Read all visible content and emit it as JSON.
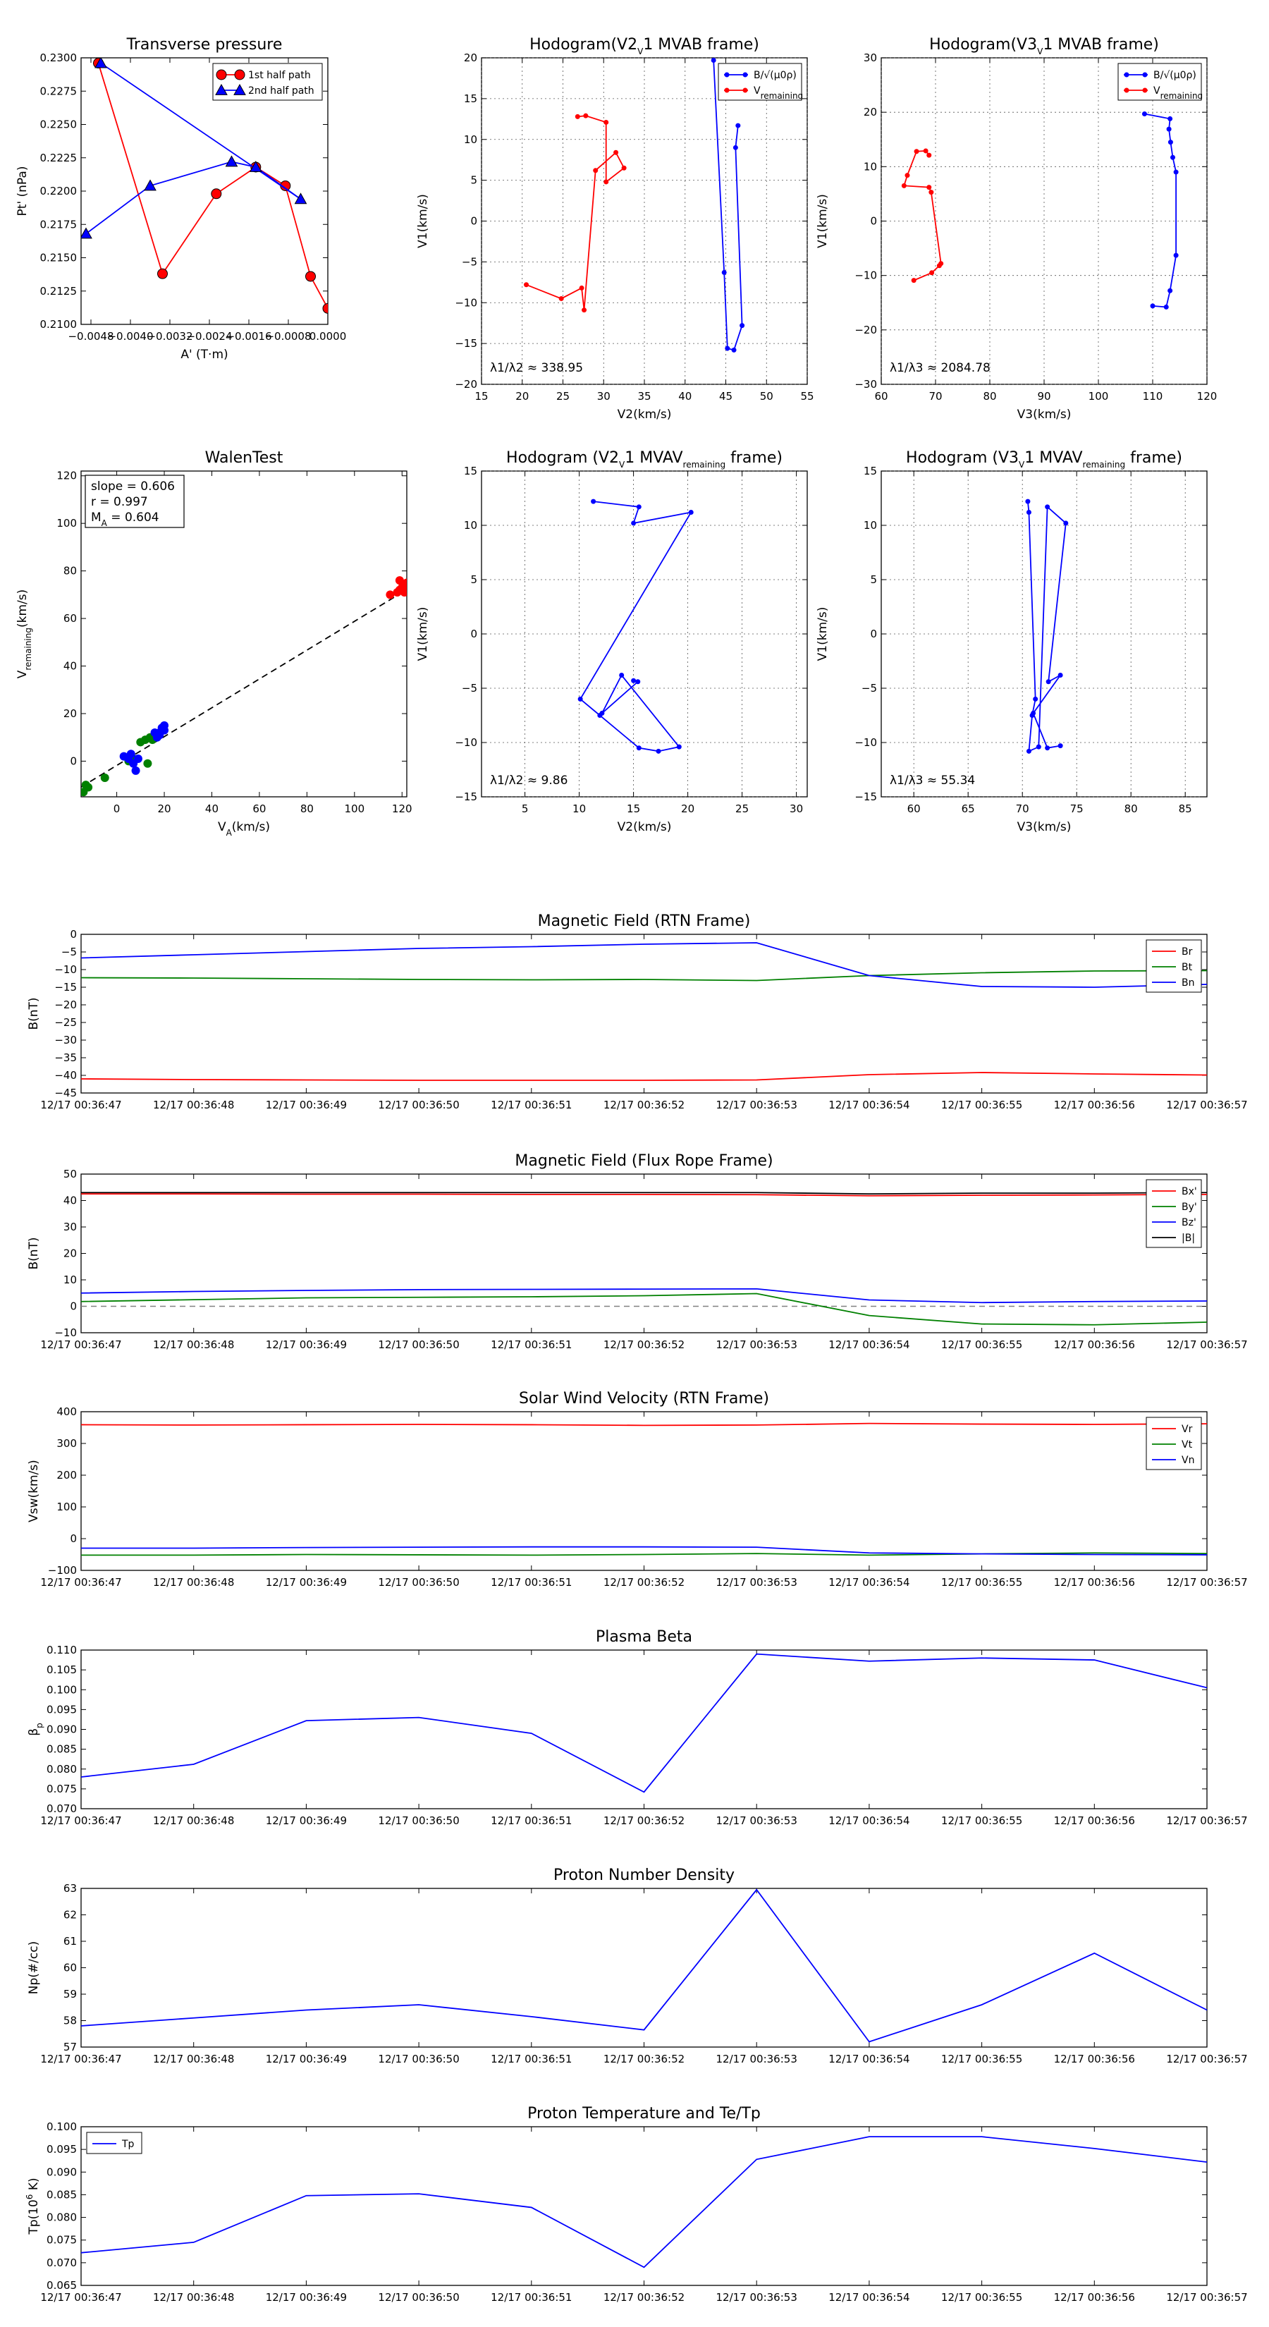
{
  "figure_title": "",
  "chart_data": [
    {
      "id": "transverse-pressure",
      "type": "line",
      "title": "Transverse pressure",
      "xlabel": "A' (T·m)",
      "ylabel": "Pt' (nPa)",
      "xlim": [
        -0.005,
        0.0
      ],
      "ylim": [
        0.21,
        0.23
      ],
      "xticks": [
        -0.0048,
        -0.004,
        -0.0032,
        -0.0024,
        -0.0016,
        -0.0008,
        0.0
      ],
      "xticklabels": [
        "−0.0048",
        "−0.0040",
        "−0.0032",
        "−0.0024",
        "−0.0016",
        "−0.0008",
        "0.0000"
      ],
      "yticks": [
        0.21,
        0.2125,
        0.215,
        0.2175,
        0.22,
        0.2225,
        0.225,
        0.2275,
        0.23
      ],
      "yticklabels": [
        "0.2100",
        "0.2125",
        "0.2150",
        "0.2175",
        "0.2200",
        "0.2225",
        "0.2250",
        "0.2275",
        "0.2300"
      ],
      "grid": false,
      "legend": "top-right",
      "series": [
        {
          "name": "1st half path",
          "color": "#ff0000",
          "marker": "circle",
          "x": [
            -0.00465,
            -0.00335,
            -0.00226,
            -0.00146,
            -0.00086,
            -0.00035,
            0.0
          ],
          "y": [
            0.2296,
            0.2138,
            0.2198,
            0.2218,
            0.2204,
            0.2136,
            0.2112
          ]
        },
        {
          "name": "2nd half path",
          "color": "#0000ff",
          "marker": "triangle",
          "x": [
            -0.0049,
            -0.0036,
            -0.00195,
            -0.00146,
            -0.00055,
            -0.0046
          ],
          "y": [
            0.2168,
            0.2204,
            0.2222,
            0.2218,
            0.2194,
            0.2296
          ]
        }
      ]
    },
    {
      "id": "hodogram-v2v1-mvab",
      "type": "line",
      "title": "Hodogram(V2_V1 MVAB frame)",
      "xlabel": "V2(km/s)",
      "ylabel": "V1(km/s)",
      "xlim": [
        15,
        55
      ],
      "ylim": [
        -20,
        20
      ],
      "xticks": [
        15,
        20,
        25,
        30,
        35,
        40,
        45,
        50,
        55
      ],
      "yticks": [
        -20,
        -15,
        -10,
        -5,
        0,
        5,
        10,
        15,
        20
      ],
      "grid": true,
      "legend": "top-right",
      "annotation": "λ1/λ2 ≈ 338.95",
      "series": [
        {
          "name": "B/√(μ0ρ)",
          "color": "#0000ff",
          "marker": "dot",
          "x": [
            43.5,
            44.8,
            45.2,
            46.0,
            47.0,
            46.2,
            46.5
          ],
          "y": [
            19.7,
            -6.3,
            -15.6,
            -15.8,
            -12.8,
            9.0,
            11.7
          ]
        },
        {
          "name": "V_remaining",
          "color": "#ff0000",
          "marker": "dot",
          "x": [
            20.5,
            24.8,
            27.3,
            27.6,
            29.0,
            31.5,
            32.5,
            30.3,
            30.3,
            27.8,
            26.8
          ],
          "y": [
            -7.8,
            -9.5,
            -8.2,
            -10.9,
            6.2,
            8.4,
            6.5,
            4.8,
            12.1,
            12.9,
            12.8
          ]
        }
      ]
    },
    {
      "id": "hodogram-v3v1-mvab",
      "type": "line",
      "title": "Hodogram(V3_V1 MVAB frame)",
      "xlabel": "V3(km/s)",
      "ylabel": "V1(km/s)",
      "xlim": [
        60,
        120
      ],
      "ylim": [
        -30,
        30
      ],
      "xticks": [
        60,
        70,
        80,
        90,
        100,
        110,
        120
      ],
      "yticks": [
        -30,
        -20,
        -10,
        0,
        10,
        20,
        30
      ],
      "grid": true,
      "legend": "top-right",
      "annotation": "λ1/λ3 ≈ 2084.78",
      "series": [
        {
          "name": "B/√(μ0ρ)",
          "color": "#0000ff",
          "marker": "dot",
          "x": [
            108.5,
            113.2,
            113.0,
            113.3,
            113.7,
            114.3,
            114.3,
            113.2,
            112.5,
            110.0
          ],
          "y": [
            19.7,
            18.8,
            16.9,
            14.5,
            11.7,
            9.0,
            -6.3,
            -12.8,
            -15.8,
            -15.6
          ]
        },
        {
          "name": "V_remaining",
          "color": "#ff0000",
          "marker": "dot",
          "x": [
            66.0,
            69.3,
            70.7,
            71.0,
            69.2,
            68.8,
            64.2,
            64.8,
            66.5,
            68.2,
            68.8
          ],
          "y": [
            -10.9,
            -9.5,
            -8.2,
            -7.8,
            5.3,
            6.2,
            6.5,
            8.4,
            12.8,
            12.9,
            12.1
          ]
        }
      ]
    },
    {
      "id": "walen-test",
      "type": "scatter",
      "title": "WalenTest",
      "xlabel": "V_A(km/s)",
      "ylabel": "V_remaining(km/s)",
      "xlim": [
        -15,
        122
      ],
      "ylim": [
        -15,
        122
      ],
      "xticks": [
        0,
        20,
        40,
        60,
        80,
        100,
        120
      ],
      "yticks": [
        0,
        20,
        40,
        60,
        80,
        100,
        120
      ],
      "grid": false,
      "stats": [
        "slope = 0.606",
        "r = 0.997",
        "M_A = 0.604"
      ],
      "fit_line": {
        "slope": 0.606,
        "intercept": -1.8,
        "x": [
          -15,
          121
        ]
      },
      "series": [
        {
          "name": "red",
          "color": "#ff0000",
          "x": [
            115,
            118,
            119,
            120,
            121,
            122,
            121,
            119
          ],
          "y": [
            70,
            71,
            72,
            73,
            74,
            75,
            71,
            76
          ]
        },
        {
          "name": "green",
          "color": "#008000",
          "x": [
            -14,
            -12,
            -13,
            -5,
            10,
            12,
            14,
            15,
            13,
            5,
            7
          ],
          "y": [
            -13,
            -11,
            -10,
            -7,
            8,
            9,
            10,
            9,
            -1,
            0,
            1
          ]
        },
        {
          "name": "blue",
          "color": "#0000ff",
          "x": [
            3,
            5,
            6,
            7,
            8,
            9,
            17,
            18,
            19,
            20,
            20,
            18,
            16
          ],
          "y": [
            2,
            1,
            3,
            -1,
            -4,
            1,
            10,
            12,
            14,
            15,
            13,
            11,
            12
          ]
        }
      ]
    },
    {
      "id": "hodogram-v2v1-mvav",
      "type": "line",
      "title": "Hodogram (V2_V1 MVAV_remaining frame)",
      "xlabel": "V2(km/s)",
      "ylabel": "V1(km/s)",
      "xlim": [
        1,
        31
      ],
      "ylim": [
        -15,
        15
      ],
      "xticks": [
        5,
        10,
        15,
        20,
        25,
        30
      ],
      "yticks": [
        -15,
        -10,
        -5,
        0,
        5,
        10,
        15
      ],
      "grid": true,
      "annotation": "λ1/λ2 ≈ 9.86",
      "series": [
        {
          "name": "V_remaining",
          "color": "#0000ff",
          "marker": "dot",
          "x": [
            11.3,
            15.5,
            15.0,
            20.3,
            10.1,
            11.9,
            15.5,
            17.3,
            19.2,
            13.9,
            12.1,
            15.4,
            15.0
          ],
          "y": [
            12.2,
            11.7,
            10.2,
            11.2,
            -6.0,
            -7.5,
            -10.5,
            -10.8,
            -10.4,
            -3.8,
            -7.3,
            -4.4,
            -4.3
          ]
        }
      ]
    },
    {
      "id": "hodogram-v3v1-mvav",
      "type": "line",
      "title": "Hodogram (V3_V1 MVAV_remaining frame)",
      "xlabel": "V3(km/s)",
      "ylabel": "V1(km/s)",
      "xlim": [
        57,
        87
      ],
      "ylim": [
        -15,
        15
      ],
      "xticks": [
        60,
        65,
        70,
        75,
        80,
        85
      ],
      "yticks": [
        -15,
        -10,
        -5,
        0,
        5,
        10,
        15
      ],
      "grid": true,
      "annotation": "λ1/λ3 ≈ 55.34",
      "series": [
        {
          "name": "V_remaining",
          "color": "#0000ff",
          "marker": "dot",
          "x": [
            70.5,
            70.6,
            71.2,
            70.9,
            70.6,
            71.5,
            72.3,
            74.0,
            72.4,
            73.5,
            71.0,
            72.3,
            73.5
          ],
          "y": [
            12.2,
            11.2,
            -6.0,
            -7.5,
            -10.8,
            -10.4,
            11.7,
            10.2,
            -4.4,
            -3.8,
            -7.3,
            -10.5,
            -10.3
          ]
        }
      ]
    },
    {
      "id": "mag-field-rtn",
      "type": "line",
      "title": "Magnetic Field (RTN Frame)",
      "ylabel": "B(nT)",
      "ylim": [
        -45,
        0
      ],
      "yticks": [
        -45,
        -40,
        -35,
        -30,
        -25,
        -20,
        -15,
        -10,
        -5,
        0
      ],
      "categories": [
        "12/17 00:36:47",
        "12/17 00:36:48",
        "12/17 00:36:49",
        "12/17 00:36:50",
        "12/17 00:36:51",
        "12/17 00:36:52",
        "12/17 00:36:53",
        "12/17 00:36:54",
        "12/17 00:36:55",
        "12/17 00:36:56",
        "12/17 00:36:57"
      ],
      "legend": "top-right",
      "series": [
        {
          "name": "Br",
          "color": "#ff0000",
          "values": [
            -41.0,
            -41.2,
            -41.3,
            -41.4,
            -41.4,
            -41.4,
            -41.3,
            -39.8,
            -39.2,
            -39.6,
            -39.9
          ]
        },
        {
          "name": "Bt",
          "color": "#008000",
          "values": [
            -12.3,
            -12.4,
            -12.6,
            -12.8,
            -12.9,
            -12.8,
            -13.1,
            -11.7,
            -10.9,
            -10.4,
            -10.3
          ]
        },
        {
          "name": "Bn",
          "color": "#0000ff",
          "values": [
            -6.7,
            -5.8,
            -4.9,
            -4.0,
            -3.5,
            -2.8,
            -2.4,
            -11.7,
            -14.8,
            -15.0,
            -14.2
          ]
        }
      ]
    },
    {
      "id": "mag-field-flux-rope",
      "type": "line",
      "title": "Magnetic Field (Flux Rope Frame)",
      "ylabel": "B(nT)",
      "ylim": [
        -10,
        50
      ],
      "yticks": [
        -10,
        0,
        10,
        20,
        30,
        40,
        50
      ],
      "categories": [
        "12/17 00:36:47",
        "12/17 00:36:48",
        "12/17 00:36:49",
        "12/17 00:36:50",
        "12/17 00:36:51",
        "12/17 00:36:52",
        "12/17 00:36:53",
        "12/17 00:36:54",
        "12/17 00:36:55",
        "12/17 00:36:56",
        "12/17 00:36:57"
      ],
      "legend": "top-right",
      "series": [
        {
          "name": "Bx'",
          "color": "#ff0000",
          "values": [
            42.5,
            42.5,
            42.4,
            42.4,
            42.3,
            42.3,
            42.2,
            41.8,
            42.0,
            42.1,
            42.3
          ]
        },
        {
          "name": "By'",
          "color": "#008000",
          "values": [
            1.8,
            2.5,
            3.2,
            3.4,
            3.6,
            4.0,
            4.8,
            -3.5,
            -6.7,
            -7.0,
            -6.0
          ]
        },
        {
          "name": "Bz'",
          "color": "#0000ff",
          "values": [
            5.0,
            5.6,
            6.0,
            6.3,
            6.4,
            6.5,
            6.6,
            2.4,
            1.4,
            1.8,
            2.0
          ]
        },
        {
          "name": "|B|",
          "color": "#000000",
          "values": [
            43.0,
            43.0,
            43.0,
            43.0,
            43.0,
            43.0,
            43.0,
            42.5,
            42.8,
            42.8,
            43.0
          ]
        }
      ],
      "zero_line": {
        "style": "dashed",
        "color": "#808080",
        "y": 0
      }
    },
    {
      "id": "solar-wind-velocity",
      "type": "line",
      "title": "Solar Wind Velocity (RTN Frame)",
      "ylabel": "Vsw(km/s)",
      "ylim": [
        -100,
        400
      ],
      "yticks": [
        -100,
        0,
        100,
        200,
        300,
        400
      ],
      "categories": [
        "12/17 00:36:47",
        "12/17 00:36:48",
        "12/17 00:36:49",
        "12/17 00:36:50",
        "12/17 00:36:51",
        "12/17 00:36:52",
        "12/17 00:36:53",
        "12/17 00:36:54",
        "12/17 00:36:55",
        "12/17 00:36:56",
        "12/17 00:36:57"
      ],
      "legend": "top-right",
      "series": [
        {
          "name": "Vr",
          "color": "#ff0000",
          "values": [
            359,
            358,
            359,
            360,
            359,
            357,
            358,
            363,
            361,
            360,
            362
          ]
        },
        {
          "name": "Vt",
          "color": "#008000",
          "values": [
            -52,
            -52,
            -50,
            -51,
            -52,
            -50,
            -47,
            -52,
            -48,
            -45,
            -47
          ]
        },
        {
          "name": "Vn",
          "color": "#0000ff",
          "values": [
            -30,
            -30,
            -28,
            -27,
            -26,
            -26,
            -27,
            -45,
            -48,
            -50,
            -51
          ]
        }
      ]
    },
    {
      "id": "plasma-beta",
      "type": "line",
      "title": "Plasma Beta",
      "ylabel": "β_p",
      "ylim": [
        0.07,
        0.11
      ],
      "yticks": [
        0.07,
        0.075,
        0.08,
        0.085,
        0.09,
        0.095,
        0.1,
        0.105,
        0.11
      ],
      "yticklabels": [
        "0.070",
        "0.075",
        "0.080",
        "0.085",
        "0.090",
        "0.095",
        "0.100",
        "0.105",
        "0.110"
      ],
      "categories": [
        "12/17 00:36:47",
        "12/17 00:36:48",
        "12/17 00:36:49",
        "12/17 00:36:50",
        "12/17 00:36:51",
        "12/17 00:36:52",
        "12/17 00:36:53",
        "12/17 00:36:54",
        "12/17 00:36:55",
        "12/17 00:36:56",
        "12/17 00:36:57"
      ],
      "series": [
        {
          "name": "beta",
          "color": "#0000ff",
          "values": [
            0.078,
            0.0812,
            0.0922,
            0.093,
            0.089,
            0.0742,
            0.109,
            0.1072,
            0.108,
            0.1075,
            0.1005
          ]
        }
      ]
    },
    {
      "id": "proton-density",
      "type": "line",
      "title": "Proton Number Density",
      "ylabel": "Np(#/cc)",
      "ylim": [
        57,
        63
      ],
      "yticks": [
        57,
        58,
        59,
        60,
        61,
        62,
        63
      ],
      "categories": [
        "12/17 00:36:47",
        "12/17 00:36:48",
        "12/17 00:36:49",
        "12/17 00:36:50",
        "12/17 00:36:51",
        "12/17 00:36:52",
        "12/17 00:36:53",
        "12/17 00:36:54",
        "12/17 00:36:55",
        "12/17 00:36:56",
        "12/17 00:36:57"
      ],
      "series": [
        {
          "name": "Np",
          "color": "#0000ff",
          "values": [
            57.8,
            58.1,
            58.4,
            58.6,
            58.15,
            57.65,
            62.95,
            57.2,
            58.6,
            60.55,
            58.4
          ]
        }
      ]
    },
    {
      "id": "proton-temperature",
      "type": "line",
      "title": "Proton Temperature and Te/Tp",
      "ylabel": "Tp(10^6 K)",
      "ylim": [
        0.065,
        0.1
      ],
      "yticks": [
        0.065,
        0.07,
        0.075,
        0.08,
        0.085,
        0.09,
        0.095,
        0.1
      ],
      "yticklabels": [
        "0.065",
        "0.070",
        "0.075",
        "0.080",
        "0.085",
        "0.090",
        "0.095",
        "0.100"
      ],
      "categories": [
        "12/17 00:36:47",
        "12/17 00:36:48",
        "12/17 00:36:49",
        "12/17 00:36:50",
        "12/17 00:36:51",
        "12/17 00:36:52",
        "12/17 00:36:53",
        "12/17 00:36:54",
        "12/17 00:36:55",
        "12/17 00:36:56",
        "12/17 00:36:57"
      ],
      "legend": "top-left",
      "series": [
        {
          "name": "Tp",
          "color": "#0000ff",
          "values": [
            0.0722,
            0.0745,
            0.0848,
            0.0852,
            0.0822,
            0.069,
            0.0928,
            0.0978,
            0.0978,
            0.0952,
            0.0922
          ]
        }
      ]
    }
  ]
}
